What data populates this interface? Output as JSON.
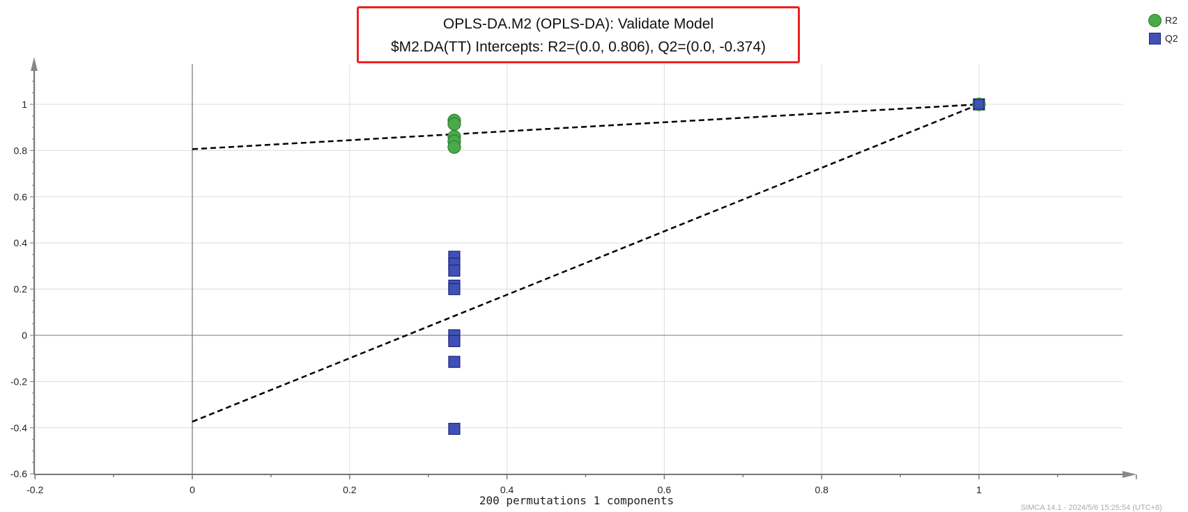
{
  "chart_data": {
    "type": "scatter",
    "title": "OPLS-DA.M2 (OPLS-DA): Validate Model",
    "subtitle": "$M2.DA(TT) Intercepts: R2=(0.0, 0.806), Q2=(0.0, -0.374)",
    "xlabel": "200 permutations 1 components",
    "ylabel": "",
    "xlim": [
      -0.2,
      1.2
    ],
    "ylim": [
      -0.6,
      1.2
    ],
    "xticks": [
      "-0.2",
      "0",
      "0.2",
      "0.4",
      "0.6",
      "0.8",
      "1"
    ],
    "xtick_values": [
      -0.2,
      0,
      0.2,
      0.4,
      0.6,
      0.8,
      1
    ],
    "yticks": [
      "-0.6",
      "-0.4",
      "-0.2",
      "0",
      "0.2",
      "0.4",
      "0.6",
      "0.8",
      "1"
    ],
    "ytick_values": [
      -0.6,
      -0.4,
      -0.2,
      0,
      0.2,
      0.4,
      0.6,
      0.8,
      1
    ],
    "grid": true,
    "legend_position": "top-right",
    "series": [
      {
        "name": "R2",
        "marker": "circle",
        "color": "#4aaa4a",
        "points": [
          [
            0.333,
            0.93
          ],
          [
            0.333,
            0.915
          ],
          [
            0.333,
            0.86
          ],
          [
            0.333,
            0.84
          ],
          [
            0.333,
            0.815
          ],
          [
            1,
            1
          ]
        ]
      },
      {
        "name": "Q2",
        "marker": "square",
        "color": "#3f51b5",
        "points": [
          [
            0.333,
            0.34
          ],
          [
            0.333,
            0.31
          ],
          [
            0.333,
            0.28
          ],
          [
            0.333,
            0.215
          ],
          [
            0.333,
            0.2
          ],
          [
            0.333,
            0.0
          ],
          [
            0.333,
            -0.025
          ],
          [
            0.333,
            -0.115
          ],
          [
            0.333,
            -0.405
          ],
          [
            1,
            1
          ]
        ]
      }
    ],
    "regression_lines": [
      {
        "name": "R2 fit",
        "from": [
          0,
          0.806
        ],
        "to": [
          1,
          1
        ]
      },
      {
        "name": "Q2 fit",
        "from": [
          0,
          -0.374
        ],
        "to": [
          1,
          1
        ]
      }
    ]
  },
  "footer": "SIMCA 14.1 - 2024/5/6 15:25:54 (UTC+8)"
}
